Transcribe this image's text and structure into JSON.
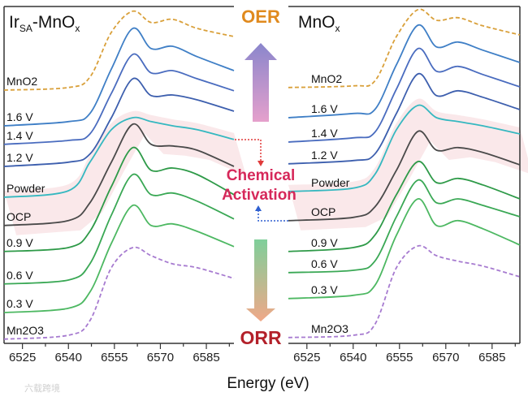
{
  "chart_data": {
    "type": "line",
    "xlabel": "Energy (eV)",
    "ylabel": "",
    "xlim": [
      6519,
      6594
    ],
    "ylim": [
      0,
      10.375
    ],
    "xticks": [
      6525,
      6540,
      6555,
      6570,
      6585
    ],
    "x": [
      6519,
      6540,
      6547,
      6554,
      6561,
      6567,
      6574,
      6582,
      6594
    ],
    "panels": [
      {
        "title_parts": [
          "Ir",
          "SA",
          "-MnO",
          "x"
        ],
        "series": [
          {
            "name": "MnO2",
            "color": "#d9a03a",
            "dashed": true,
            "values": [
              7.8,
              7.88,
              8.2,
              9.58,
              10.23,
              9.88,
              9.98,
              9.7,
              9.45
            ]
          },
          {
            "name": "1.6 V",
            "color": "#3f7fc6",
            "dashed": false,
            "values": [
              6.7,
              6.83,
              7.08,
              8.45,
              9.7,
              9.08,
              9.15,
              8.83,
              8.4
            ]
          },
          {
            "name": "1.4 V",
            "color": "#4a6cbf",
            "dashed": false,
            "values": [
              6.13,
              6.25,
              6.45,
              7.7,
              8.9,
              8.33,
              8.4,
              8.15,
              7.78
            ]
          },
          {
            "name": "1.2 V",
            "color": "#3d5fae",
            "dashed": false,
            "values": [
              5.45,
              5.58,
              5.83,
              6.95,
              8.15,
              7.63,
              7.65,
              7.5,
              7.15
            ]
          },
          {
            "name": "Powder",
            "color": "#35b8c0",
            "dashed": false,
            "values": [
              4.5,
              4.7,
              5.58,
              6.58,
              6.95,
              6.83,
              6.7,
              6.58,
              6.28
            ]
          },
          {
            "name": "OCP",
            "color": "#4a4a4a",
            "dashed": false,
            "values": [
              3.63,
              3.78,
              4.33,
              5.58,
              6.75,
              6.13,
              6.08,
              5.95,
              5.45
            ]
          },
          {
            "name": "0.9 V",
            "color": "#2e9a48",
            "dashed": false,
            "values": [
              2.83,
              2.95,
              3.45,
              4.83,
              6.03,
              5.33,
              5.4,
              5.2,
              4.58
            ]
          },
          {
            "name": "0.6 V",
            "color": "#3aa855",
            "dashed": false,
            "values": [
              1.83,
              1.95,
              2.45,
              3.95,
              5.2,
              4.58,
              4.63,
              4.38,
              3.83
            ]
          },
          {
            "name": "0.3 V",
            "color": "#4db862",
            "dashed": false,
            "values": [
              0.95,
              1.08,
              1.58,
              3.08,
              4.25,
              3.63,
              3.68,
              3.45,
              2.98
            ]
          },
          {
            "name": "Mn2O3",
            "color": "#a77bd0",
            "dashed": true,
            "values": [
              0.13,
              0.25,
              0.7,
              2.33,
              2.95,
              2.7,
              2.45,
              2.33,
              2.0
            ]
          }
        ]
      },
      {
        "title_parts": [
          "MnO",
          "x"
        ],
        "series": [
          {
            "name": "MnO2",
            "color": "#d9a03a",
            "dashed": true,
            "values": [
              7.88,
              7.93,
              8.08,
              9.45,
              10.28,
              9.95,
              10.03,
              9.78,
              9.5
            ]
          },
          {
            "name": "1.6 V",
            "color": "#3f7fc6",
            "dashed": false,
            "values": [
              6.95,
              7.08,
              7.2,
              8.58,
              9.8,
              9.13,
              9.28,
              9.03,
              8.65
            ]
          },
          {
            "name": "1.4 V",
            "color": "#4a6cbf",
            "dashed": false,
            "values": [
              6.2,
              6.33,
              6.5,
              7.83,
              9.08,
              8.38,
              8.53,
              8.28,
              7.9
            ]
          },
          {
            "name": "1.2 V",
            "color": "#3d5fae",
            "dashed": false,
            "values": [
              5.53,
              5.63,
              5.83,
              7.08,
              8.3,
              7.63,
              7.78,
              7.58,
              7.2
            ]
          },
          {
            "name": "Powder",
            "color": "#35b8c0",
            "dashed": false,
            "values": [
              4.68,
              4.78,
              5.2,
              6.58,
              7.33,
              6.95,
              6.83,
              6.7,
              6.45
            ]
          },
          {
            "name": "OCP",
            "color": "#4a4a4a",
            "dashed": false,
            "values": [
              3.78,
              3.88,
              4.2,
              5.33,
              6.53,
              5.95,
              6.03,
              5.88,
              5.5
            ]
          },
          {
            "name": "0.9 V",
            "color": "#2e9a48",
            "dashed": false,
            "values": [
              2.83,
              2.95,
              3.33,
              4.58,
              5.6,
              4.95,
              5.08,
              4.88,
              4.45
            ]
          },
          {
            "name": "0.6 V",
            "color": "#3aa855",
            "dashed": false,
            "values": [
              2.18,
              2.25,
              2.53,
              3.9,
              5.03,
              4.33,
              4.45,
              4.25,
              3.9
            ]
          },
          {
            "name": "0.3 V",
            "color": "#4db862",
            "dashed": false,
            "values": [
              1.38,
              1.48,
              1.78,
              3.33,
              4.45,
              3.63,
              3.78,
              3.53,
              3.03
            ]
          },
          {
            "name": "Mn2O3",
            "color": "#a77bd0",
            "dashed": true,
            "values": [
              0.18,
              0.25,
              0.58,
              2.33,
              3.0,
              2.7,
              2.53,
              2.38,
              2.05
            ]
          }
        ]
      }
    ],
    "annotations": {
      "oer": "OER",
      "orr": "ORR",
      "activation_line1": "Chemical",
      "activation_line2": "Activation"
    },
    "colors": {
      "oer": "#e08a1e",
      "orr": "#b3202a",
      "activation": "#d6285a",
      "band": "#f6d9dc"
    }
  },
  "watermark": "六载跨境"
}
